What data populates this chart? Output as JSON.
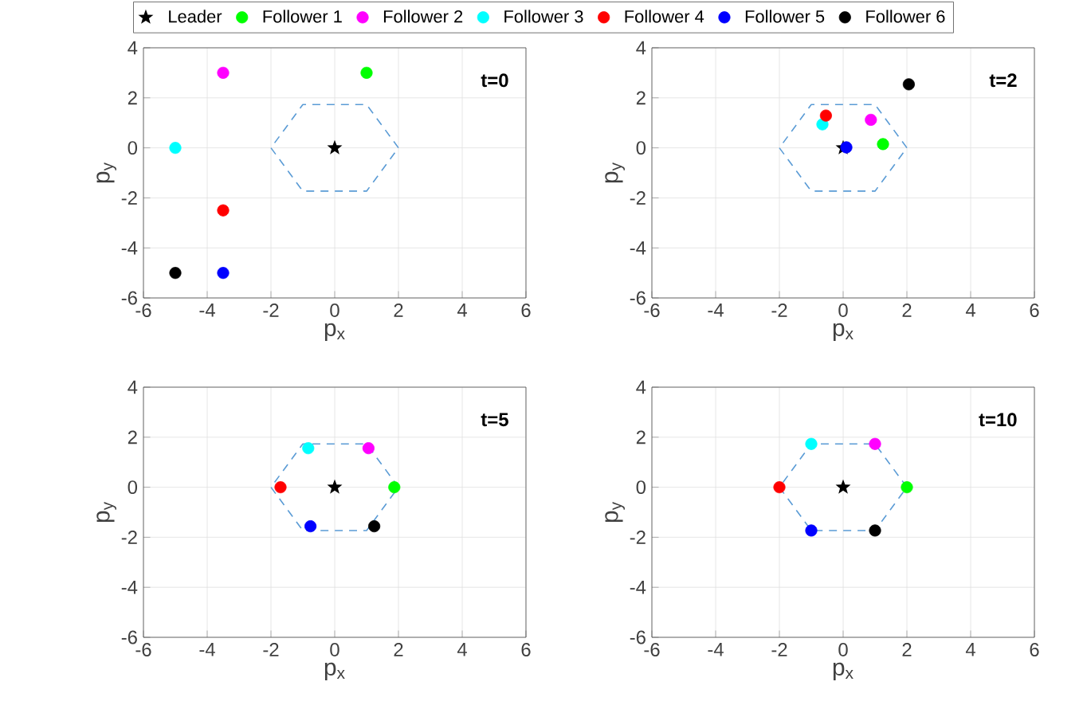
{
  "chart_data": [
    {
      "type": "scatter",
      "annotations": [
        "t=0"
      ],
      "xlabel": "p$_{x}$",
      "ylabel": "p$_{y}$",
      "xlim": [
        -6,
        6
      ],
      "ylim": [
        -6,
        4
      ],
      "xticks": [
        -6,
        -4,
        -2,
        0,
        2,
        4,
        6
      ],
      "yticks": [
        -6,
        -4,
        -2,
        0,
        2,
        4
      ],
      "grid": true,
      "legend": "top",
      "series": [
        {
          "name": "Leader",
          "color": "#000000",
          "marker": "star",
          "x": [
            0
          ],
          "values": [
            0
          ]
        },
        {
          "name": "Follower 1",
          "color": "#00ff00",
          "marker": "circle",
          "x": [
            1
          ],
          "values": [
            3
          ]
        },
        {
          "name": "Follower 2",
          "color": "#ff00ff",
          "marker": "circle",
          "x": [
            -3.5
          ],
          "values": [
            3
          ]
        },
        {
          "name": "Follower 3",
          "color": "#00ffff",
          "marker": "circle",
          "x": [
            -5
          ],
          "values": [
            0
          ]
        },
        {
          "name": "Follower 4",
          "color": "#ff0000",
          "marker": "circle",
          "x": [
            -3.5
          ],
          "values": [
            -2.5
          ]
        },
        {
          "name": "Follower 5",
          "color": "#0000ff",
          "marker": "circle",
          "x": [
            -3.5
          ],
          "values": [
            -5
          ]
        },
        {
          "name": "Follower 6",
          "color": "#000000",
          "marker": "circle",
          "x": [
            -5
          ],
          "values": [
            -5
          ]
        },
        {
          "type": "line",
          "color": "#5a9bd5",
          "line_style": "dashed",
          "marker": "none",
          "x": [
            2,
            1,
            -1,
            -2
          ],
          "values": [
            0,
            1.73,
            1.73,
            0
          ]
        },
        {
          "type": "line",
          "color": "#5a9bd5",
          "line_style": "dashed",
          "marker": "none",
          "x": [
            -2,
            -1,
            1,
            2
          ],
          "values": [
            0,
            -1.73,
            -1.73,
            0
          ]
        }
      ]
    },
    {
      "type": "scatter",
      "annotations": [
        "t=2"
      ],
      "xlabel": "p$_{x}$",
      "ylabel": "p$_{y}$",
      "xlim": [
        -6,
        6
      ],
      "ylim": [
        -6,
        4
      ],
      "xticks": [
        -6,
        -4,
        -2,
        0,
        2,
        4,
        6
      ],
      "yticks": [
        -6,
        -4,
        -2,
        0,
        2,
        4
      ],
      "grid": true,
      "series": [
        {
          "color": "#000000",
          "marker": "star",
          "x": [
            0
          ],
          "values": [
            0
          ]
        },
        {
          "color": "#00ff00",
          "marker": "circle",
          "x": [
            1.25
          ],
          "values": [
            0.15
          ]
        },
        {
          "color": "#ff00ff",
          "marker": "circle",
          "x": [
            0.87
          ],
          "values": [
            1.12
          ]
        },
        {
          "color": "#00ffff",
          "marker": "circle",
          "x": [
            -0.65
          ],
          "values": [
            0.94
          ]
        },
        {
          "color": "#ff0000",
          "marker": "circle",
          "x": [
            -0.54
          ],
          "values": [
            1.29
          ]
        },
        {
          "color": "#0000ff",
          "marker": "circle",
          "x": [
            0.1
          ],
          "values": [
            0.02
          ]
        },
        {
          "color": "#000000",
          "marker": "circle",
          "x": [
            2.06
          ],
          "values": [
            2.54
          ]
        },
        {
          "type": "line",
          "color": "#5a9bd5",
          "line_style": "dashed",
          "marker": "none",
          "x": [
            2,
            1,
            -1,
            -2
          ],
          "values": [
            0,
            1.73,
            1.73,
            0
          ]
        },
        {
          "type": "line",
          "color": "#5a9bd5",
          "line_style": "dashed",
          "marker": "none",
          "x": [
            -2,
            -1,
            1,
            2
          ],
          "values": [
            0,
            -1.73,
            -1.73,
            0
          ]
        }
      ]
    },
    {
      "type": "scatter",
      "annotations": [
        "t=5"
      ],
      "xlabel": "p$_{x}$",
      "ylabel": "p$_{y}$",
      "xlim": [
        -6,
        6
      ],
      "ylim": [
        -6,
        4
      ],
      "xticks": [
        -6,
        -4,
        -2,
        0,
        2,
        4,
        6
      ],
      "yticks": [
        -6,
        -4,
        -2,
        0,
        2,
        4
      ],
      "grid": true,
      "series": [
        {
          "color": "#000000",
          "marker": "star",
          "x": [
            0
          ],
          "values": [
            0
          ]
        },
        {
          "color": "#00ff00",
          "marker": "circle",
          "x": [
            1.87
          ],
          "values": [
            0
          ]
        },
        {
          "color": "#ff00ff",
          "marker": "circle",
          "x": [
            1.06
          ],
          "values": [
            1.56
          ]
        },
        {
          "color": "#00ffff",
          "marker": "circle",
          "x": [
            -0.83
          ],
          "values": [
            1.56
          ]
        },
        {
          "color": "#ff0000",
          "marker": "circle",
          "x": [
            -1.7
          ],
          "values": [
            0
          ]
        },
        {
          "color": "#0000ff",
          "marker": "circle",
          "x": [
            -0.76
          ],
          "values": [
            -1.56
          ]
        },
        {
          "color": "#000000",
          "marker": "circle",
          "x": [
            1.24
          ],
          "values": [
            -1.56
          ]
        },
        {
          "type": "line",
          "color": "#5a9bd5",
          "line_style": "dashed",
          "marker": "none",
          "x": [
            2,
            1,
            -1,
            -2
          ],
          "values": [
            0,
            1.73,
            1.73,
            0
          ]
        },
        {
          "type": "line",
          "color": "#5a9bd5",
          "line_style": "dashed",
          "marker": "none",
          "x": [
            -2,
            -1,
            1,
            2
          ],
          "values": [
            0,
            -1.73,
            -1.73,
            0
          ]
        }
      ]
    },
    {
      "type": "scatter",
      "annotations": [
        "t=10"
      ],
      "xlabel": "p$_{x}$",
      "ylabel": "p$_{y}$",
      "xlim": [
        -6,
        6
      ],
      "ylim": [
        -6,
        4
      ],
      "xticks": [
        -6,
        -4,
        -2,
        0,
        2,
        4,
        6
      ],
      "yticks": [
        -6,
        -4,
        -2,
        0,
        2,
        4
      ],
      "grid": true,
      "series": [
        {
          "color": "#000000",
          "marker": "star",
          "x": [
            0
          ],
          "values": [
            0
          ]
        },
        {
          "color": "#00ff00",
          "marker": "circle",
          "x": [
            2
          ],
          "values": [
            0
          ]
        },
        {
          "color": "#ff00ff",
          "marker": "circle",
          "x": [
            1
          ],
          "values": [
            1.73
          ]
        },
        {
          "color": "#00ffff",
          "marker": "circle",
          "x": [
            -1
          ],
          "values": [
            1.73
          ]
        },
        {
          "color": "#ff0000",
          "marker": "circle",
          "x": [
            -2
          ],
          "values": [
            0
          ]
        },
        {
          "color": "#0000ff",
          "marker": "circle",
          "x": [
            -1
          ],
          "values": [
            -1.73
          ]
        },
        {
          "color": "#000000",
          "marker": "circle",
          "x": [
            1
          ],
          "values": [
            -1.73
          ]
        },
        {
          "type": "line",
          "color": "#5a9bd5",
          "line_style": "dashed",
          "marker": "none",
          "x": [
            2,
            1,
            -1,
            -2
          ],
          "values": [
            0,
            1.73,
            1.73,
            0
          ]
        },
        {
          "type": "line",
          "color": "#5a9bd5",
          "line_style": "dashed",
          "marker": "none",
          "x": [
            -2,
            -1,
            1,
            2
          ],
          "values": [
            0,
            -1.73,
            -1.73,
            0
          ]
        }
      ]
    }
  ]
}
